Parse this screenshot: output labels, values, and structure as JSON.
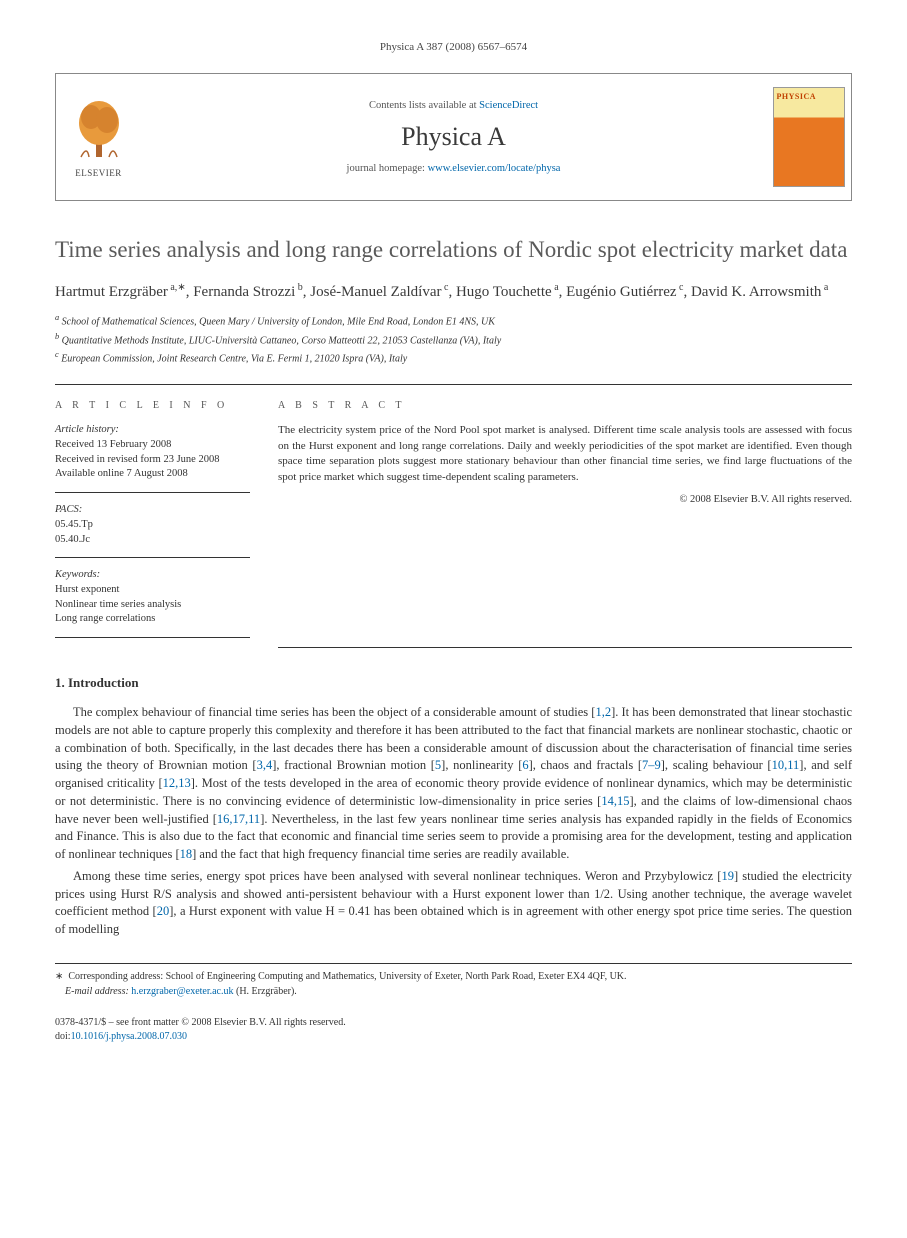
{
  "running_head": "Physica A 387 (2008) 6567–6574",
  "header": {
    "contents_prefix": "Contents lists available at ",
    "contents_link": "ScienceDirect",
    "journal_title": "Physica A",
    "homepage_prefix": "journal homepage: ",
    "homepage_link": "www.elsevier.com/locate/physa",
    "elsevier_label": "ELSEVIER",
    "cover_label": "PHYSICA"
  },
  "title": "Time series analysis and long range correlations of Nordic spot electricity market data",
  "authors_html": "Hartmut Erzgräber",
  "authors": [
    {
      "name": "Hartmut Erzgräber",
      "marks": "a,*"
    },
    {
      "name": "Fernanda Strozzi",
      "marks": "b"
    },
    {
      "name": "José-Manuel Zaldívar",
      "marks": "c"
    },
    {
      "name": "Hugo Touchette",
      "marks": "a"
    },
    {
      "name": "Eugénio Gutiérrez",
      "marks": "c"
    },
    {
      "name": "David K. Arrowsmith",
      "marks": "a"
    }
  ],
  "affiliations": [
    {
      "mark": "a",
      "text": "School of Mathematical Sciences, Queen Mary / University of London, Mile End Road, London E1 4NS, UK"
    },
    {
      "mark": "b",
      "text": "Quantitative Methods Institute, LIUC-Università Cattaneo, Corso Matteotti 22, 21053 Castellanza (VA), Italy"
    },
    {
      "mark": "c",
      "text": "European Commission, Joint Research Centre, Via E. Fermi 1, 21020 Ispra (VA), Italy"
    }
  ],
  "info": {
    "label": "A R T I C L E   I N F O",
    "history_label": "Article history:",
    "received": "Received 13 February 2008",
    "revised": "Received in revised form 23 June 2008",
    "online": "Available online 7 August 2008",
    "pacs_label": "PACS:",
    "pacs": [
      "05.45.Tp",
      "05.40.Jc"
    ],
    "keywords_label": "Keywords:",
    "keywords": [
      "Hurst exponent",
      "Nonlinear time series analysis",
      "Long range correlations"
    ]
  },
  "abstract": {
    "label": "A B S T R A C T",
    "text": "The electricity system price of the Nord Pool spot market is analysed. Different time scale analysis tools are assessed with focus on the Hurst exponent and long range correlations. Daily and weekly periodicities of the spot market are identified. Even though space time separation plots suggest more stationary behaviour than other financial time series, we find large fluctuations of the spot price market which suggest time-dependent scaling parameters.",
    "copyright": "© 2008 Elsevier B.V. All rights reserved."
  },
  "section1": {
    "heading": "1. Introduction",
    "para1_a": "The complex behaviour of financial time series has been the object of a considerable amount of studies [",
    "ref12": "1,2",
    "para1_b": "]. It has been demonstrated that linear stochastic models are not able to capture properly this complexity and therefore it has been attributed to the fact that financial markets are nonlinear stochastic, chaotic or a combination of both. Specifically, in the last decades there has been a considerable amount of discussion about the characterisation of financial time series using the theory of Brownian motion [",
    "ref34": "3,4",
    "para1_c": "], fractional Brownian motion [",
    "ref5": "5",
    "para1_d": "], nonlinearity [",
    "ref6": "6",
    "para1_e": "], chaos and fractals [",
    "ref79": "7–9",
    "para1_f": "], scaling behaviour [",
    "ref1011": "10,11",
    "para1_g": "], and self organised criticality [",
    "ref1213": "12,13",
    "para1_h": "]. Most of the tests developed in the area of economic theory provide evidence of nonlinear dynamics, which may be deterministic or not deterministic. There is no convincing evidence of deterministic low-dimensionality in price series [",
    "ref1415": "14,15",
    "para1_i": "], and the claims of low-dimensional chaos have never been well-justified [",
    "ref161711": "16,17,11",
    "para1_j": "]. Nevertheless, in the last few years nonlinear time series analysis has expanded rapidly in the fields of Economics and Finance. This is also due to the fact that economic and financial time series seem to provide a promising area for the development, testing and application of nonlinear techniques [",
    "ref18": "18",
    "para1_k": "] and the fact that high frequency financial time series are readily available.",
    "para2_a": "Among these time series, energy spot prices have been analysed with several nonlinear techniques. Weron and Przybylowicz [",
    "ref19": "19",
    "para2_b": "] studied the electricity prices using Hurst R/S analysis and showed anti-persistent behaviour with a Hurst exponent lower than 1/2. Using another technique, the average wavelet coefficient method [",
    "ref20": "20",
    "para2_c": "], a Hurst exponent with value H = 0.41 has been obtained which is in agreement with other energy spot price time series. The question of modelling"
  },
  "footnotes": {
    "corr_label": "Corresponding address: School of Engineering Computing and Mathematics, University of Exeter, North Park Road, Exeter EX4 4QF, UK.",
    "email_label": "E-mail address:",
    "email": "h.erzgraber@exeter.ac.uk",
    "email_who": "(H. Erzgräber)."
  },
  "footer": {
    "issn_line": "0378-4371/$ – see front matter © 2008 Elsevier B.V. All rights reserved.",
    "doi_label": "doi:",
    "doi": "10.1016/j.physa.2008.07.030"
  },
  "colors": {
    "link": "#0066aa",
    "text": "#333333",
    "title_gray": "#5a5a5a",
    "elsevier_orange": "#e87722",
    "border": "#333333"
  }
}
